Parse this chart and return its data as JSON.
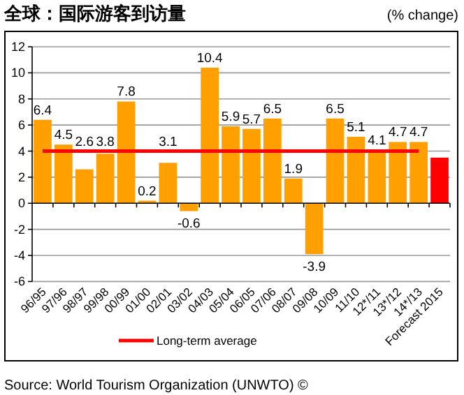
{
  "chart_data": {
    "type": "bar",
    "title": "全球：国际游客到访量",
    "annotations": [
      "(% change)",
      "Source: World Tourism Organization (UNWTO) ©"
    ],
    "categories": [
      "96/95",
      "97/96",
      "98/97",
      "99/98",
      "00/99",
      "01/00",
      "02/01",
      "03/02",
      "04/03",
      "05/04",
      "06/05",
      "07/06",
      "08/07",
      "09/08",
      "10/09",
      "11/10",
      "12*/11",
      "13*/12",
      "14*/13",
      "Forecast 2015"
    ],
    "values": [
      6.4,
      4.5,
      2.6,
      3.8,
      7.8,
      0.2,
      3.1,
      -0.6,
      10.4,
      5.9,
      5.7,
      6.5,
      1.9,
      -3.9,
      6.5,
      5.1,
      4.1,
      4.7,
      4.7,
      3.5
    ],
    "value_labels": [
      "6.4",
      "4.5",
      "2.6",
      "3.8",
      "7.8",
      "0.2",
      "3.1",
      "-0.6",
      "10.4",
      "5.9",
      "5.7",
      "6.5",
      "1.9",
      "-3.9",
      "6.5",
      "5.1",
      "4.1",
      "4.7",
      "4.7",
      null
    ],
    "colors": [
      "#ffa000",
      "#ffa000",
      "#ffa000",
      "#ffa000",
      "#ffa000",
      "#ffa000",
      "#ffa000",
      "#ffa000",
      "#ffa000",
      "#ffa000",
      "#ffa000",
      "#ffa000",
      "#ffa000",
      "#ffa000",
      "#ffa000",
      "#ffa000",
      "#ffa000",
      "#ffa000",
      "#ffa000",
      "#ff0000"
    ],
    "ylim": [
      -6,
      12
    ],
    "yticks": [
      -6,
      -4,
      -2,
      0,
      2,
      4,
      6,
      8,
      10,
      12
    ],
    "grid": "y",
    "legend": "bottom",
    "ref_lines": [
      {
        "axis": "y",
        "value": 4,
        "label": "Long-term average",
        "color": "#ff0000"
      }
    ]
  }
}
